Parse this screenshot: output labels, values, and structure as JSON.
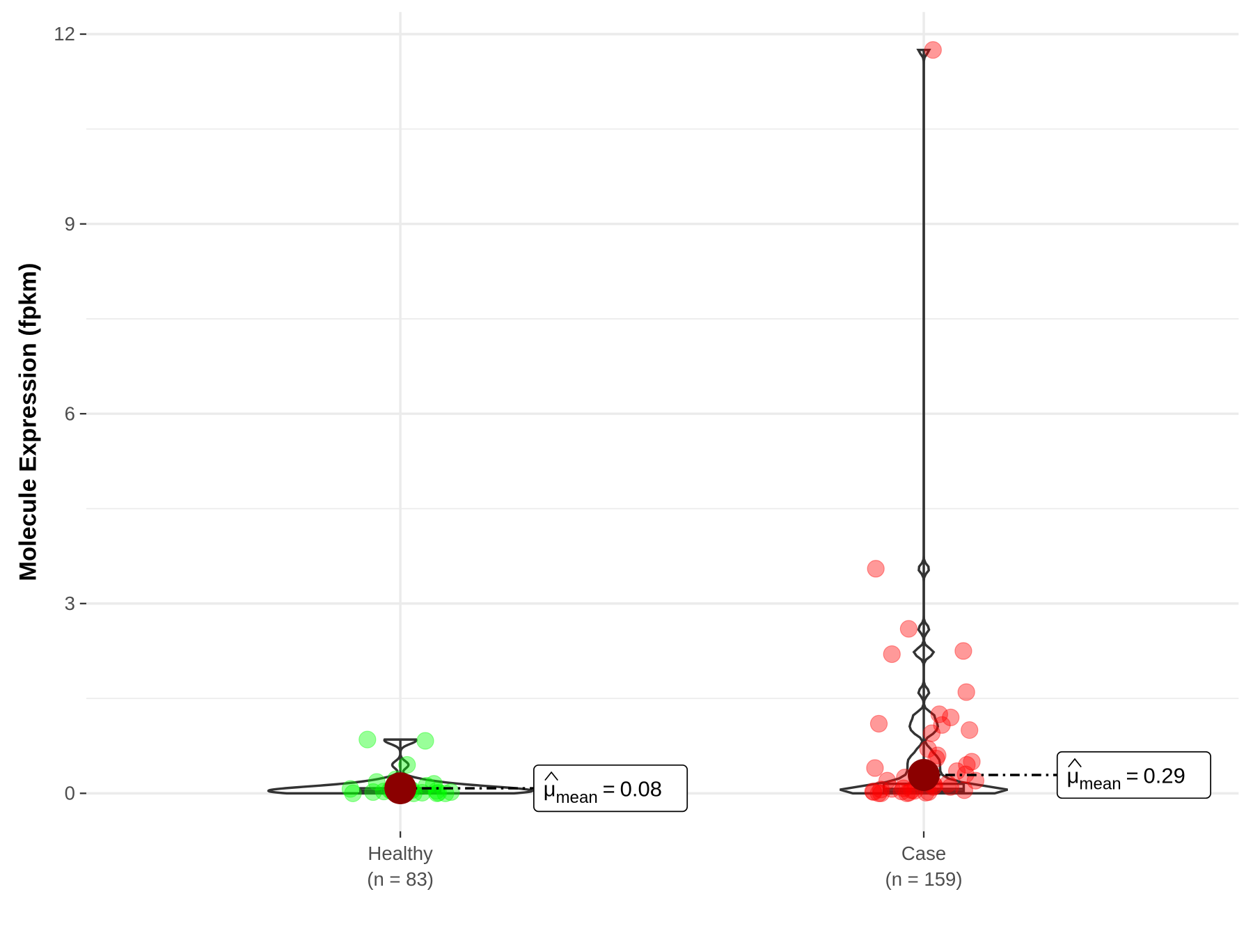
{
  "chart_data": {
    "type": "violin",
    "y_label": "Molecule Expression (fpkm)",
    "categories": [
      "Healthy",
      "Case"
    ],
    "n_labels": [
      "(n = 83)",
      "(n = 159)"
    ],
    "ylim": [
      -0.6,
      12.35
    ],
    "yticks": [
      0,
      3,
      6,
      9,
      12
    ],
    "grid": true,
    "mean_symbol": "μ",
    "mean_subscript": "mean",
    "mean_equals": "=",
    "series": [
      {
        "name": "Healthy",
        "color": "#00ff00",
        "mean": 0.08,
        "box": {
          "whisker_low": 0,
          "q1": 0.01,
          "median": 0.04,
          "q3": 0.08,
          "whisker_high": 0.85
        },
        "values": [
          0.85,
          0.83,
          0.45,
          0.22,
          0.18,
          0.15,
          0.12,
          0.1,
          0.1,
          0.08,
          0.07,
          0.06,
          0.05,
          0.05,
          0.04,
          0.03,
          0.03,
          0.02,
          0.02,
          0.01,
          0.01,
          0,
          0,
          0,
          0
        ]
      },
      {
        "name": "Case",
        "color": "#ff0000",
        "mean": 0.29,
        "box": {
          "whisker_low": 0,
          "q1": 0.03,
          "median": 0.07,
          "q3": 0.15,
          "whisker_high": 11.75
        },
        "values": [
          11.75,
          3.55,
          2.6,
          2.25,
          2.2,
          1.6,
          1.25,
          1.2,
          1.1,
          1.08,
          1.0,
          0.95,
          0.7,
          0.6,
          0.55,
          0.5,
          0.45,
          0.4,
          0.35,
          0.3,
          0.25,
          0.2,
          0.2,
          0.15,
          0.15,
          0.12,
          0.1,
          0.1,
          0.08,
          0.07,
          0.06,
          0.05,
          0.05,
          0.04,
          0.03,
          0.03,
          0.02,
          0.02,
          0.01,
          0.01,
          0,
          0,
          0
        ]
      }
    ]
  }
}
